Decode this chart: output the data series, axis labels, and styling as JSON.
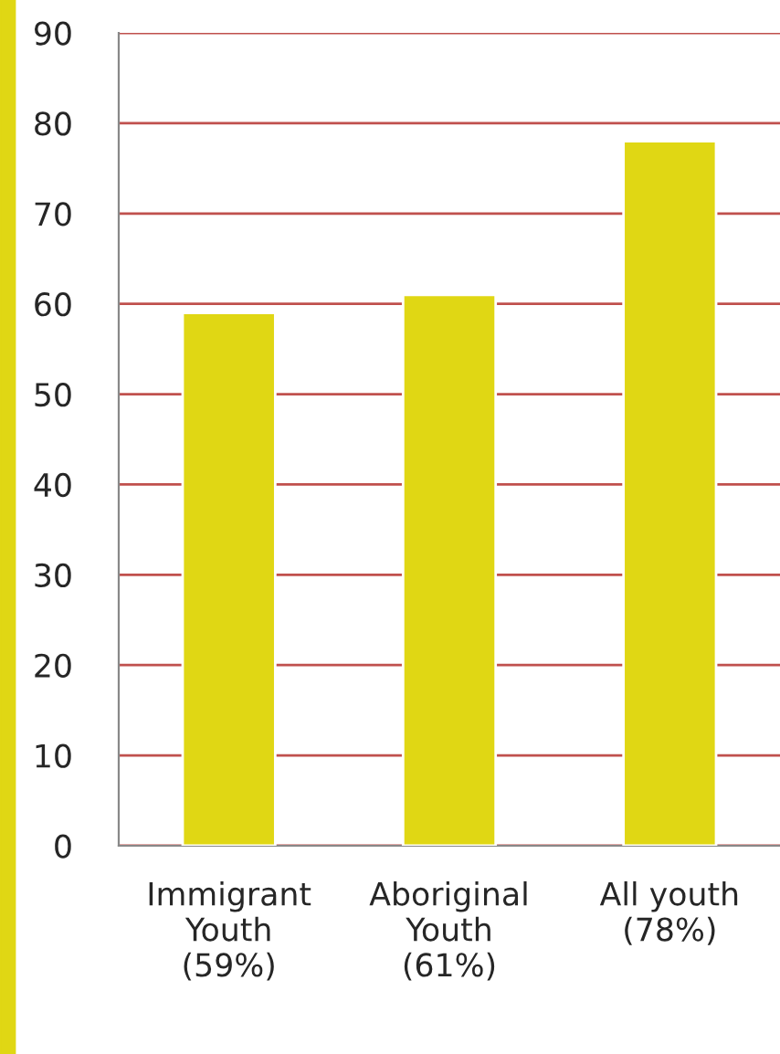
{
  "chart_data": {
    "type": "bar",
    "categories": [
      "Immigrant\nYouth\n(59%)",
      "Aboriginal\nYouth\n(61%)",
      "All youth\n(78%)"
    ],
    "values": [
      59,
      61,
      78
    ],
    "color": "#e0d714",
    "ylim": [
      0,
      90
    ],
    "yticks": [
      0,
      10,
      20,
      30,
      40,
      50,
      60,
      70,
      80,
      90
    ],
    "grid": "y"
  }
}
